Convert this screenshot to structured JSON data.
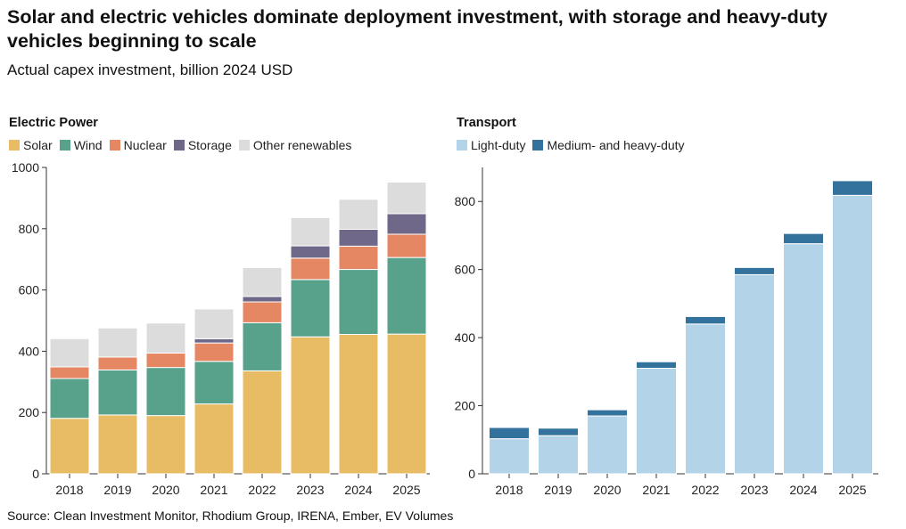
{
  "title": "Solar and electric vehicles dominate deployment investment, with storage and heavy-duty vehicles beginning to scale",
  "subtitle": "Actual capex investment, billion 2024 USD",
  "source": "Source: Clean Investment Monitor, Rhodium Group, IRENA, Ember, EV Volumes",
  "chart_data": [
    {
      "type": "bar",
      "stacked": true,
      "title": "Electric Power",
      "categories": [
        "2018",
        "2019",
        "2020",
        "2021",
        "2022",
        "2023",
        "2024",
        "2025"
      ],
      "ylim": [
        0,
        1000
      ],
      "yticks": [
        0,
        200,
        400,
        600,
        800,
        1000
      ],
      "series": [
        {
          "name": "Solar",
          "color": "#e8bc65",
          "values": [
            181,
            192,
            190,
            228,
            336,
            447,
            455,
            456
          ]
        },
        {
          "name": "Wind",
          "color": "#58a18b",
          "values": [
            130,
            147,
            157,
            139,
            157,
            187,
            212,
            250
          ]
        },
        {
          "name": "Nuclear",
          "color": "#e58763",
          "values": [
            38,
            42,
            47,
            60,
            68,
            70,
            76,
            76
          ]
        },
        {
          "name": "Storage",
          "color": "#6f6889",
          "values": [
            0,
            0,
            0,
            14,
            18,
            40,
            55,
            67
          ]
        },
        {
          "name": "Other renewables",
          "color": "#dcdcdc",
          "values": [
            92,
            95,
            98,
            97,
            94,
            92,
            98,
            103
          ]
        }
      ]
    },
    {
      "type": "bar",
      "stacked": true,
      "title": "Transport",
      "categories": [
        "2018",
        "2019",
        "2020",
        "2021",
        "2022",
        "2023",
        "2024",
        "2025"
      ],
      "ylim": [
        0,
        900
      ],
      "yticks": [
        0,
        200,
        400,
        600,
        800
      ],
      "series": [
        {
          "name": "Light-duty",
          "color": "#b3d4e8",
          "values": [
            103,
            112,
            170,
            310,
            440,
            585,
            676,
            818
          ]
        },
        {
          "name": "Medium- and heavy-duty",
          "color": "#33729d",
          "values": [
            33,
            22,
            18,
            19,
            22,
            21,
            30,
            43
          ]
        }
      ]
    }
  ]
}
